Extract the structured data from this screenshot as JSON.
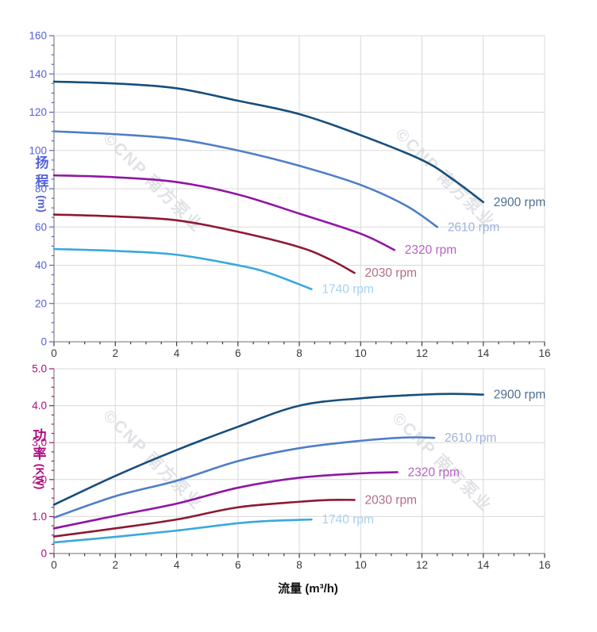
{
  "watermark": {
    "text": "©CNP 南方泵业"
  },
  "x_title": "流量 (m³/h)",
  "chart_data": [
    {
      "type": "line",
      "title": "",
      "xlabel": "流量 (m³/h)",
      "ylabel": "扬程 (m)",
      "y_axis_label": {
        "text_top": "扬",
        "text_bottom": "程",
        "unit": "(m)"
      },
      "xlim": [
        0,
        16
      ],
      "ylim": [
        0,
        160
      ],
      "x_major": 2,
      "x_minor": 0.5,
      "y_major": 20,
      "y_minor": 5,
      "x_tick_labels": [
        "0",
        "2",
        "4",
        "6",
        "8",
        "10",
        "12",
        "14",
        "16"
      ],
      "y_tick_labels": [
        "0",
        "20",
        "40",
        "60",
        "80",
        "100",
        "120",
        "140",
        "160"
      ],
      "axis_color": "#5262D9",
      "x_axis_color": "#3a3a3a",
      "grid": true,
      "grid_color": "#d9d9d9",
      "legend_position": "curve-end-labels",
      "series": [
        {
          "name": "2900 rpm",
          "color": "#174E7C",
          "label_color": "#4E6F96",
          "points": [
            [
              0,
              136
            ],
            [
              2,
              135
            ],
            [
              4,
              132.5
            ],
            [
              6,
              126
            ],
            [
              8,
              119
            ],
            [
              10,
              108
            ],
            [
              12,
              95
            ],
            [
              13,
              85
            ],
            [
              14,
              73
            ]
          ]
        },
        {
          "name": "2610 rpm",
          "color": "#4E7EC8",
          "label_color": "#9DB3DC",
          "points": [
            [
              0,
              110
            ],
            [
              2,
              108.5
            ],
            [
              4,
              106
            ],
            [
              6,
              100
            ],
            [
              8,
              92
            ],
            [
              10,
              82
            ],
            [
              11.5,
              71
            ],
            [
              12.5,
              60
            ]
          ]
        },
        {
          "name": "2320 rpm",
          "color": "#9016A4",
          "label_color": "#B463C0",
          "points": [
            [
              0,
              87
            ],
            [
              2,
              86
            ],
            [
              4,
              83.5
            ],
            [
              6,
              77
            ],
            [
              8,
              67
            ],
            [
              10,
              56.5
            ],
            [
              11.1,
              48
            ]
          ]
        },
        {
          "name": "2030 rpm",
          "color": "#8E1834",
          "label_color": "#B26F80",
          "points": [
            [
              0,
              66.5
            ],
            [
              2,
              65.5
            ],
            [
              4,
              63.5
            ],
            [
              6,
              57.5
            ],
            [
              8,
              49.5
            ],
            [
              9,
              43
            ],
            [
              9.8,
              36
            ]
          ]
        },
        {
          "name": "1740 rpm",
          "color": "#39A8DF",
          "label_color": "#A5D2F0",
          "points": [
            [
              0,
              48.5
            ],
            [
              2,
              47.5
            ],
            [
              4,
              45.5
            ],
            [
              6,
              40
            ],
            [
              7,
              36
            ],
            [
              8.4,
              27.5
            ]
          ]
        }
      ]
    },
    {
      "type": "line",
      "title": "",
      "xlabel": "流量 (m³/h)",
      "ylabel": "功率 (KW)",
      "y_axis_label": {
        "text_top": "功",
        "text_bottom": "率",
        "unit": "(KW)"
      },
      "xlim": [
        0,
        16
      ],
      "ylim": [
        0,
        5
      ],
      "x_major": 2,
      "x_minor": 0.5,
      "y_major": 1,
      "y_minor": 0.25,
      "x_tick_labels": [
        "0",
        "2",
        "4",
        "6",
        "8",
        "10",
        "12",
        "14",
        "16"
      ],
      "y_tick_labels": [
        "0",
        "1.0",
        "2.0",
        "3.0",
        "4.0",
        "5.0"
      ],
      "axis_color": "#AE0B7F",
      "x_axis_color": "#3a3a3a",
      "grid": true,
      "grid_color": "#d9d9d9",
      "legend_position": "curve-end-labels",
      "series": [
        {
          "name": "2900 rpm",
          "color": "#174E7C",
          "label_color": "#4E6F96",
          "points": [
            [
              0,
              1.32
            ],
            [
              2,
              2.1
            ],
            [
              4,
              2.8
            ],
            [
              6,
              3.43
            ],
            [
              8,
              4.0
            ],
            [
              10,
              4.2
            ],
            [
              12,
              4.3
            ],
            [
              13,
              4.32
            ],
            [
              14,
              4.3
            ]
          ]
        },
        {
          "name": "2610 rpm",
          "color": "#4E7EC8",
          "label_color": "#9DB3DC",
          "points": [
            [
              0,
              0.97
            ],
            [
              2,
              1.55
            ],
            [
              4,
              1.97
            ],
            [
              6,
              2.5
            ],
            [
              8,
              2.85
            ],
            [
              10,
              3.05
            ],
            [
              11.5,
              3.14
            ],
            [
              12.4,
              3.13
            ]
          ]
        },
        {
          "name": "2320 rpm",
          "color": "#9016A4",
          "label_color": "#B463C0",
          "points": [
            [
              0,
              0.68
            ],
            [
              2,
              1.02
            ],
            [
              4,
              1.35
            ],
            [
              6,
              1.78
            ],
            [
              8,
              2.05
            ],
            [
              10,
              2.17
            ],
            [
              11.2,
              2.2
            ]
          ]
        },
        {
          "name": "2030 rpm",
          "color": "#8E1834",
          "label_color": "#B26F80",
          "points": [
            [
              0,
              0.46
            ],
            [
              2,
              0.68
            ],
            [
              4,
              0.92
            ],
            [
              6,
              1.25
            ],
            [
              8,
              1.4
            ],
            [
              9,
              1.45
            ],
            [
              9.8,
              1.45
            ]
          ]
        },
        {
          "name": "1740 rpm",
          "color": "#39A8DF",
          "label_color": "#A5D2F0",
          "points": [
            [
              0,
              0.3
            ],
            [
              2,
              0.45
            ],
            [
              4,
              0.62
            ],
            [
              6,
              0.82
            ],
            [
              7,
              0.88
            ],
            [
              8.4,
              0.92
            ]
          ]
        }
      ]
    }
  ]
}
